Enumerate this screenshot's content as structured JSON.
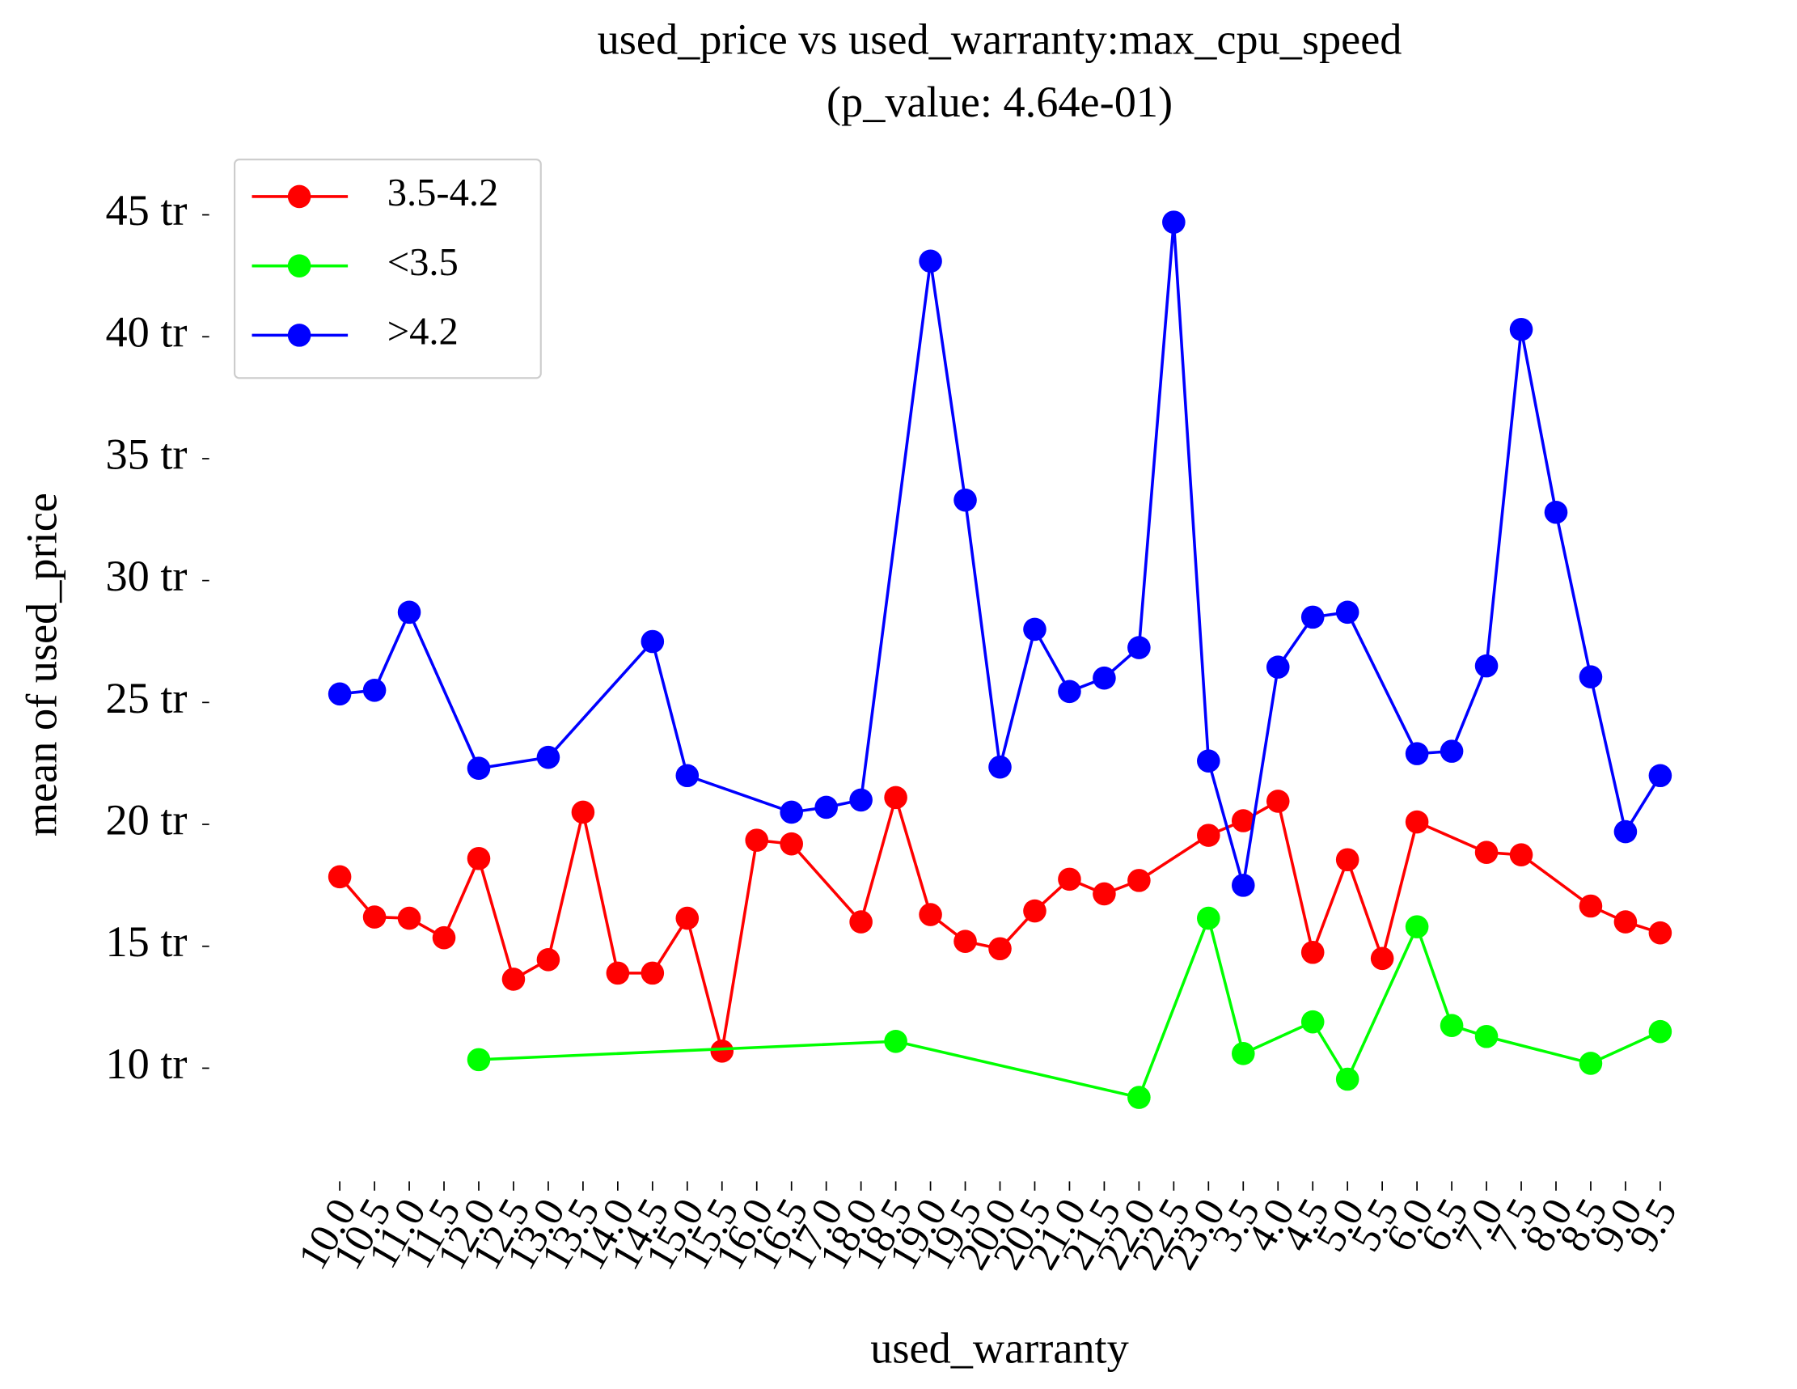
{
  "chart_data": {
    "type": "line",
    "title": "used_price vs used_warranty:max_cpu_speed",
    "subtitle": "(p_value: 4.64e-01)",
    "x_label": "used_warranty",
    "y_label": "mean of used_price",
    "categories": [
      "10.0",
      "10.5",
      "11.0",
      "11.5",
      "12.0",
      "12.5",
      "13.0",
      "13.5",
      "14.0",
      "14.5",
      "15.0",
      "15.5",
      "16.0",
      "16.5",
      "17.0",
      "18.0",
      "18.5",
      "19.0",
      "19.5",
      "20.0",
      "20.5",
      "21.0",
      "21.5",
      "22.0",
      "22.5",
      "23.0",
      "3.5",
      "4.0",
      "4.5",
      "5.0",
      "5.5",
      "6.0",
      "6.5",
      "7.0",
      "7.5",
      "8.0",
      "8.5",
      "9.0",
      "9.5"
    ],
    "ylim": [
      6.4,
      46.7
    ],
    "yticks": [
      {
        "value": 10,
        "label": "10 tr"
      },
      {
        "value": 15,
        "label": "15 tr"
      },
      {
        "value": 20,
        "label": "20 tr"
      },
      {
        "value": 25,
        "label": "25 tr"
      },
      {
        "value": 30,
        "label": "30 tr"
      },
      {
        "value": 35,
        "label": "35 tr"
      },
      {
        "value": 40,
        "label": "40 tr"
      },
      {
        "value": 45,
        "label": "45 tr"
      }
    ],
    "legend": "upper left",
    "series": [
      {
        "name": "3.5-4.2",
        "color": "#ff0000",
        "x": [
          "10.0",
          "10.5",
          "11.0",
          "11.5",
          "12.0",
          "12.5",
          "13.0",
          "13.5",
          "14.0",
          "14.5",
          "15.0",
          "15.5",
          "16.0",
          "16.5",
          "18.0",
          "18.5",
          "19.0",
          "19.5",
          "20.0",
          "20.5",
          "21.0",
          "21.5",
          "22.0",
          "23.0",
          "3.5",
          "4.0",
          "4.5",
          "5.0",
          "5.5",
          "6.0",
          "7.0",
          "7.5",
          "8.5",
          "9.0",
          "9.5"
        ],
        "values": [
          17.85,
          16.2,
          16.15,
          15.35,
          18.6,
          13.65,
          14.45,
          20.5,
          13.9,
          13.9,
          16.15,
          10.7,
          19.35,
          19.2,
          16.0,
          21.1,
          16.3,
          15.2,
          14.9,
          16.45,
          17.75,
          17.15,
          17.7,
          19.55,
          20.15,
          20.95,
          14.75,
          18.55,
          14.5,
          20.1,
          18.85,
          18.75,
          16.65,
          16.0,
          15.55
        ]
      },
      {
        "name": "<3.5",
        "color": "#00ff00",
        "x": [
          "12.0",
          "18.5",
          "22.0",
          "23.0",
          "3.5",
          "4.5",
          "5.0",
          "6.0",
          "6.5",
          "7.0",
          "8.5",
          "9.5"
        ],
        "values": [
          10.35,
          11.1,
          8.8,
          16.15,
          10.6,
          11.9,
          9.55,
          15.8,
          11.75,
          11.3,
          10.2,
          11.5
        ]
      },
      {
        "name": ">4.2",
        "color": "#0000ff",
        "x": [
          "10.0",
          "10.5",
          "11.0",
          "12.0",
          "13.0",
          "14.5",
          "15.0",
          "16.5",
          "17.0",
          "18.0",
          "19.0",
          "19.5",
          "20.0",
          "20.5",
          "21.0",
          "21.5",
          "22.0",
          "22.5",
          "23.0",
          "3.5",
          "4.0",
          "4.5",
          "5.0",
          "6.0",
          "6.5",
          "7.0",
          "7.5",
          "8.0",
          "8.5",
          "9.0",
          "9.5"
        ],
        "values": [
          25.35,
          25.5,
          28.7,
          22.3,
          22.75,
          27.5,
          22.0,
          20.5,
          20.7,
          21.0,
          43.1,
          33.3,
          22.35,
          28.0,
          25.45,
          26.0,
          27.25,
          44.7,
          22.6,
          17.5,
          26.45,
          28.5,
          28.7,
          22.9,
          23.0,
          26.5,
          40.3,
          32.8,
          26.05,
          19.7,
          22.0
        ]
      }
    ]
  }
}
